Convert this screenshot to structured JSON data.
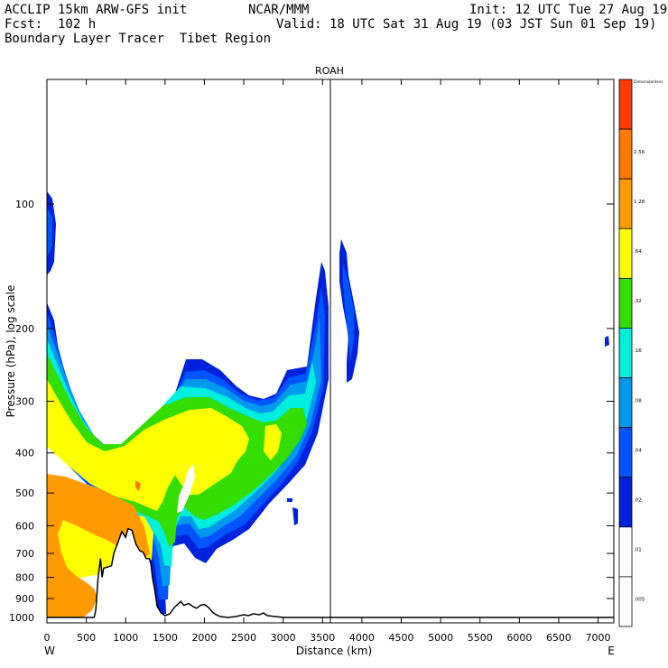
{
  "header": {
    "line1_left": "ACCLIP 15km ARW-GFS init",
    "line1_mid": "NCAR/MMM",
    "line1_right": "Init: 12 UTC Tue 27 Aug 19",
    "line2_left": "Fcst:  102 h",
    "line2_right": "Valid: 18 UTC Sat 31 Aug 19 (03 JST Sun 01 Sep 19)",
    "line3_left": "Boundary Layer Tracer  Tibet Region"
  },
  "chart_data": {
    "type": "heatmap",
    "title": "ROAH",
    "xlabel": "Distance (km)",
    "ylabel": "Pressure (hPa), log scale",
    "x_ticks": [
      0,
      500,
      1000,
      1500,
      2000,
      2500,
      3000,
      3500,
      4000,
      4500,
      5000,
      5500,
      6000,
      6500,
      7000
    ],
    "x_range": [
      0,
      7200
    ],
    "x_end_labels": {
      "left": "W",
      "right": "E"
    },
    "y_scale": "log",
    "y_ticks": [
      100,
      200,
      300,
      400,
      500,
      600,
      700,
      800,
      900,
      1000
    ],
    "y_range": [
      50,
      1000
    ],
    "station_marker_x": 3600,
    "colorbar": {
      "labels": [
        "Dimensionless",
        "2.56",
        "1.28",
        ".64",
        ".32",
        ".16",
        ".08",
        ".04",
        ".02",
        ".01",
        ".005"
      ],
      "colors": [
        "#ff3c00",
        "#ff7800",
        "#ff9b00",
        "#ffff00",
        "#33dd00",
        "#00eedd",
        "#0099ee",
        "#0055ff",
        "#0022dd",
        "#ffffff",
        "#ffffff"
      ]
    },
    "terrain": [
      [
        0,
        1000
      ],
      [
        200,
        1000
      ],
      [
        500,
        1000
      ],
      [
        600,
        1000
      ],
      [
        620,
        960
      ],
      [
        650,
        800
      ],
      [
        680,
        720
      ],
      [
        700,
        800
      ],
      [
        720,
        760
      ],
      [
        770,
        755
      ],
      [
        820,
        750
      ],
      [
        850,
        700
      ],
      [
        900,
        660
      ],
      [
        950,
        620
      ],
      [
        1000,
        640
      ],
      [
        1030,
        610
      ],
      [
        1080,
        615
      ],
      [
        1100,
        635
      ],
      [
        1130,
        665
      ],
      [
        1180,
        690
      ],
      [
        1220,
        695
      ],
      [
        1260,
        720
      ],
      [
        1300,
        720
      ],
      [
        1320,
        740
      ],
      [
        1340,
        800
      ],
      [
        1370,
        860
      ],
      [
        1400,
        940
      ],
      [
        1450,
        975
      ],
      [
        1500,
        990
      ],
      [
        1560,
        980
      ],
      [
        1620,
        945
      ],
      [
        1660,
        930
      ],
      [
        1700,
        915
      ],
      [
        1740,
        935
      ],
      [
        1800,
        925
      ],
      [
        1850,
        940
      ],
      [
        1900,
        950
      ],
      [
        1950,
        935
      ],
      [
        2000,
        930
      ],
      [
        2050,
        945
      ],
      [
        2100,
        970
      ],
      [
        2150,
        985
      ],
      [
        2200,
        995
      ],
      [
        2300,
        1000
      ],
      [
        2400,
        995
      ],
      [
        2500,
        985
      ],
      [
        2560,
        990
      ],
      [
        2620,
        980
      ],
      [
        2700,
        985
      ],
      [
        2750,
        975
      ],
      [
        2800,
        990
      ],
      [
        2900,
        995
      ],
      [
        3000,
        1000
      ],
      [
        7200,
        1000
      ]
    ]
  }
}
